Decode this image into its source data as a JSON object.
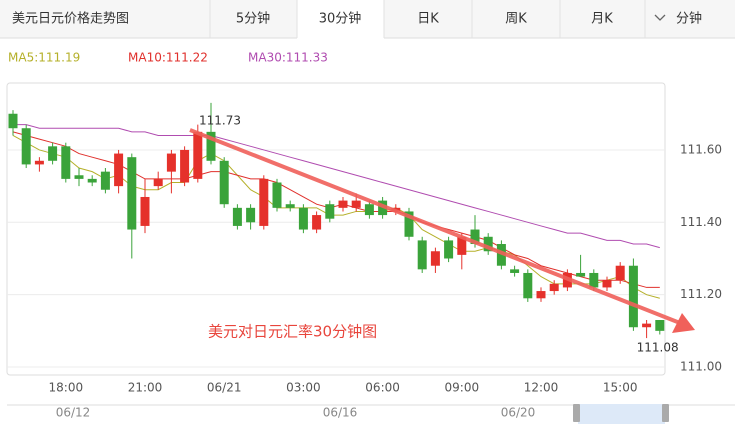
{
  "tabs": [
    "美元日元价格走势图",
    "5分钟",
    "30分钟",
    "日K",
    "周K",
    "月K",
    "分钟"
  ],
  "navigator": {
    "labels": [
      "06/12",
      "06/16",
      "06/20"
    ]
  },
  "chart_data": {
    "type": "candlestick",
    "annotations": {
      "high": "111.73",
      "low": "111.08",
      "note": "美元对日元汇率30分钟图"
    },
    "categories": [
      null,
      null,
      null,
      null,
      "18:00",
      null,
      null,
      null,
      null,
      null,
      "21:00",
      null,
      null,
      null,
      null,
      null,
      "06/21",
      null,
      null,
      null,
      null,
      null,
      "03:00",
      null,
      null,
      null,
      null,
      null,
      "06:00",
      null,
      null,
      null,
      null,
      null,
      "09:00",
      null,
      null,
      null,
      null,
      null,
      "12:00",
      null,
      null,
      null,
      null,
      null,
      "15:00",
      null,
      null,
      null
    ],
    "open": [
      111.7,
      111.66,
      111.56,
      111.61,
      111.61,
      111.53,
      111.52,
      111.54,
      111.5,
      111.58,
      111.39,
      111.5,
      111.54,
      111.51,
      111.52,
      111.65,
      111.57,
      111.44,
      111.44,
      111.39,
      111.51,
      111.45,
      111.44,
      111.38,
      111.45,
      111.44,
      111.44,
      111.45,
      111.46,
      111.43,
      111.43,
      111.35,
      111.28,
      111.35,
      111.31,
      111.38,
      111.36,
      111.34,
      111.27,
      111.26,
      111.19,
      111.21,
      111.22,
      111.26,
      111.26,
      111.22,
      111.24,
      111.28,
      111.11,
      111.13
    ],
    "high": [
      111.71,
      111.67,
      111.58,
      111.62,
      111.62,
      111.55,
      111.53,
      111.55,
      111.6,
      111.59,
      111.52,
      111.54,
      111.6,
      111.61,
      111.67,
      111.73,
      111.58,
      111.45,
      111.45,
      111.53,
      111.52,
      111.46,
      111.45,
      111.43,
      111.46,
      111.47,
      111.48,
      111.46,
      111.47,
      111.45,
      111.44,
      111.36,
      111.33,
      111.36,
      111.37,
      111.42,
      111.37,
      111.35,
      111.28,
      111.27,
      111.22,
      111.24,
      111.27,
      111.31,
      111.27,
      111.25,
      111.29,
      111.3,
      111.13,
      111.13
    ],
    "low": [
      111.64,
      111.55,
      111.54,
      111.56,
      111.51,
      111.5,
      111.5,
      111.48,
      111.48,
      111.3,
      111.37,
      111.49,
      111.48,
      111.5,
      111.51,
      111.56,
      111.44,
      111.38,
      111.38,
      111.38,
      111.43,
      111.43,
      111.37,
      111.37,
      111.4,
      111.43,
      111.43,
      111.41,
      111.41,
      111.42,
      111.35,
      111.26,
      111.26,
      111.29,
      111.27,
      111.33,
      111.31,
      111.27,
      111.25,
      111.18,
      111.18,
      111.2,
      111.21,
      111.25,
      111.21,
      111.21,
      111.23,
      111.1,
      111.08,
      111.09
    ],
    "close": [
      111.66,
      111.56,
      111.57,
      111.57,
      111.52,
      111.52,
      111.51,
      111.49,
      111.59,
      111.38,
      111.47,
      111.52,
      111.59,
      111.6,
      111.65,
      111.57,
      111.45,
      111.39,
      111.4,
      111.52,
      111.44,
      111.44,
      111.38,
      111.42,
      111.41,
      111.46,
      111.46,
      111.42,
      111.42,
      111.44,
      111.36,
      111.27,
      111.32,
      111.3,
      111.36,
      111.34,
      111.32,
      111.28,
      111.26,
      111.19,
      111.21,
      111.23,
      111.26,
      111.25,
      111.22,
      111.24,
      111.28,
      111.11,
      111.12,
      111.1
    ],
    "up_color": "#e5312b",
    "down_color": "#3aa33a",
    "series": [
      {
        "name": "MA5:111.19",
        "color": "#b5b02a",
        "values": [
          111.64,
          111.62,
          111.6,
          111.59,
          111.58,
          111.55,
          111.54,
          111.52,
          111.53,
          111.5,
          111.49,
          111.49,
          111.51,
          111.51,
          111.57,
          111.59,
          111.57,
          111.53,
          111.49,
          111.47,
          111.44,
          111.44,
          111.44,
          111.44,
          111.42,
          111.42,
          111.43,
          111.43,
          111.43,
          111.44,
          111.42,
          111.38,
          111.36,
          111.34,
          111.32,
          111.32,
          111.33,
          111.32,
          111.31,
          111.28,
          111.25,
          111.23,
          111.23,
          111.23,
          111.23,
          111.24,
          111.25,
          111.22,
          111.2,
          111.19
        ]
      },
      {
        "name": "MA10:111.22",
        "color": "#e0302c",
        "values": [
          111.65,
          111.64,
          111.63,
          111.62,
          111.61,
          111.59,
          111.58,
          111.57,
          111.56,
          111.54,
          111.52,
          111.52,
          111.52,
          111.52,
          111.53,
          111.54,
          111.54,
          111.53,
          111.52,
          111.52,
          111.51,
          111.49,
          111.47,
          111.45,
          111.44,
          111.45,
          111.44,
          111.43,
          111.43,
          111.43,
          111.42,
          111.4,
          111.39,
          111.38,
          111.37,
          111.36,
          111.35,
          111.33,
          111.31,
          111.3,
          111.28,
          111.27,
          111.26,
          111.25,
          111.24,
          111.24,
          111.24,
          111.23,
          111.22,
          111.22
        ]
      },
      {
        "name": "MA30:111.33",
        "color": "#b04cb0",
        "values": [
          111.67,
          111.67,
          111.66,
          111.66,
          111.66,
          111.66,
          111.66,
          111.66,
          111.66,
          111.65,
          111.65,
          111.64,
          111.64,
          111.64,
          111.64,
          111.64,
          111.63,
          111.62,
          111.61,
          111.6,
          111.59,
          111.58,
          111.57,
          111.56,
          111.55,
          111.54,
          111.53,
          111.52,
          111.51,
          111.5,
          111.49,
          111.48,
          111.47,
          111.46,
          111.45,
          111.44,
          111.43,
          111.42,
          111.41,
          111.4,
          111.39,
          111.38,
          111.37,
          111.37,
          111.36,
          111.35,
          111.35,
          111.34,
          111.34,
          111.33
        ]
      }
    ],
    "ylim": [
      110.978,
      111.785
    ],
    "yticks": [
      {
        "value": 111.0,
        "label": "111.00"
      },
      {
        "value": 111.2,
        "label": "111.20"
      },
      {
        "value": 111.4,
        "label": "111.40"
      },
      {
        "value": 111.6,
        "label": "111.60"
      }
    ],
    "grid": true
  }
}
